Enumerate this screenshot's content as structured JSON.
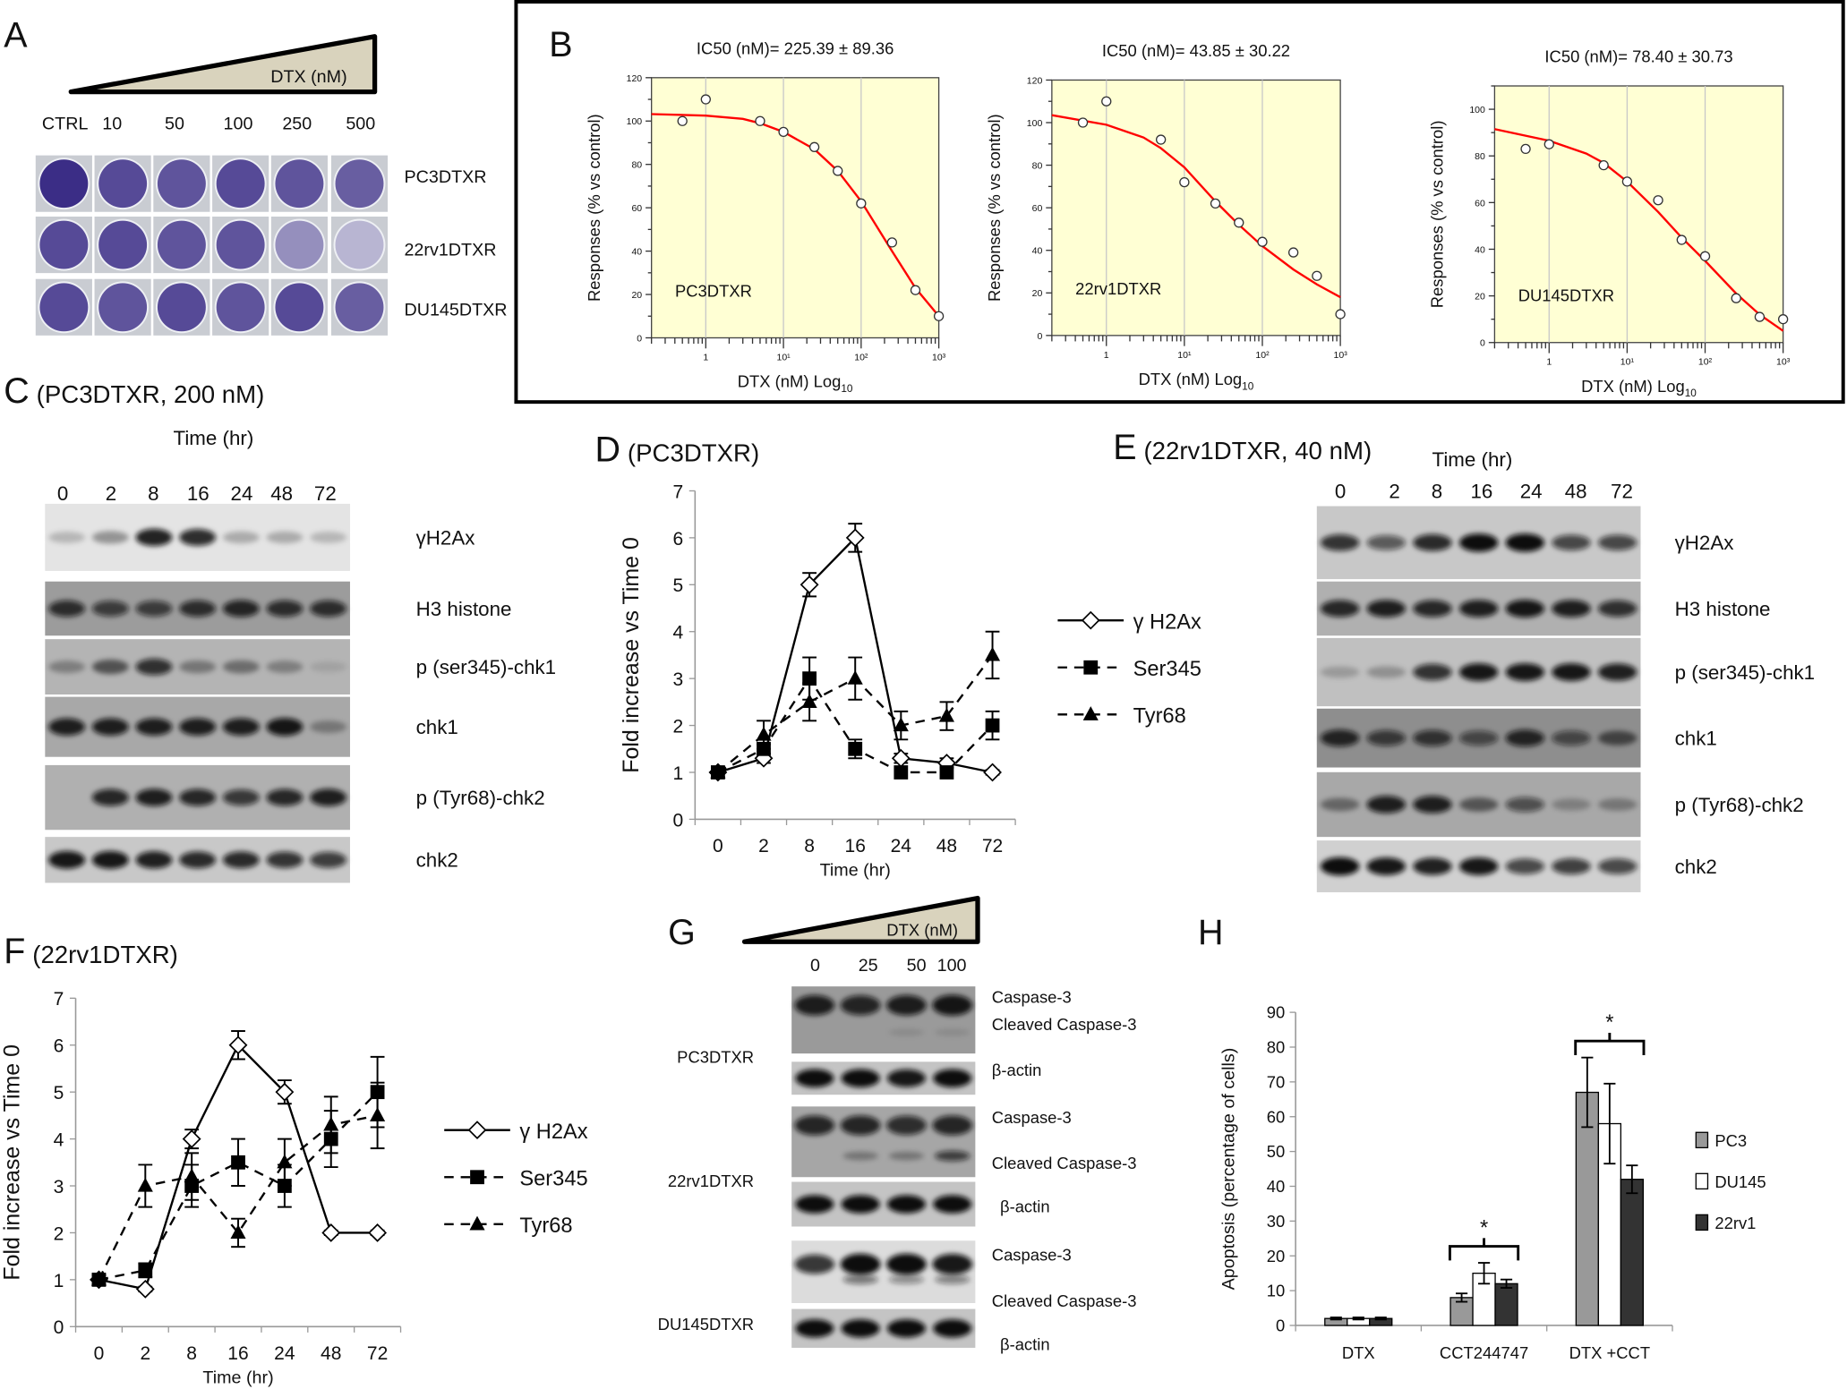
{
  "panel_A": {
    "letter": "A",
    "gradient_label": "DTX (nM)",
    "doses": [
      "CTRL",
      "10",
      "50",
      "100",
      "250",
      "500"
    ],
    "cell_lines": [
      "PC3DTXR",
      "22rv1DTXR",
      "DU145DTXR"
    ],
    "stain_intensity": [
      [
        1.0,
        0.85,
        0.8,
        0.85,
        0.8,
        0.75
      ],
      [
        0.85,
        0.85,
        0.8,
        0.8,
        0.5,
        0.3
      ],
      [
        0.85,
        0.8,
        0.85,
        0.8,
        0.85,
        0.75
      ]
    ],
    "stain_color": "#3b2d86"
  },
  "panel_B": {
    "letter": "B"
  },
  "panel_C": {
    "letter": "C",
    "title": "(PC3DTXR, 200 nM)",
    "time_label": "Time (hr)",
    "lanes": [
      "0",
      "2",
      "8",
      "16",
      "24",
      "48",
      "72"
    ],
    "rows": [
      {
        "label": "γH2Ax",
        "bands": [
          0.2,
          0.35,
          0.9,
          0.85,
          0.25,
          0.25,
          0.2
        ]
      },
      {
        "label": "H3 histone",
        "bands": [
          0.8,
          0.7,
          0.7,
          0.8,
          0.85,
          0.8,
          0.8
        ]
      },
      {
        "label": "p (ser345)-chk1",
        "bands": [
          0.3,
          0.55,
          0.8,
          0.35,
          0.4,
          0.3,
          0.1
        ]
      },
      {
        "label": "chk1",
        "bands": [
          0.9,
          0.9,
          0.9,
          0.9,
          0.9,
          0.95,
          0.3
        ]
      },
      {
        "label": "p (Tyr68)-chk2",
        "bands": [
          0.0,
          0.85,
          0.9,
          0.85,
          0.75,
          0.85,
          0.9
        ]
      },
      {
        "label": "chk2",
        "bands": [
          0.95,
          0.95,
          0.9,
          0.85,
          0.85,
          0.8,
          0.75
        ]
      }
    ]
  },
  "panel_D": {
    "letter": "D",
    "title": "(PC3DTXR)"
  },
  "panel_E": {
    "letter": "E",
    "title": "(22rv1DTXR, 40 nM)",
    "time_label": "Time (hr)",
    "lanes": [
      "0",
      "2",
      "8",
      "16",
      "24",
      "48",
      "72"
    ],
    "rows": [
      {
        "label": "γH2Ax",
        "bands": [
          0.8,
          0.6,
          0.85,
          1.0,
          1.0,
          0.7,
          0.7
        ]
      },
      {
        "label": "H3 histone",
        "bands": [
          0.85,
          0.9,
          0.85,
          0.9,
          0.95,
          0.9,
          0.8
        ]
      },
      {
        "label": "p (ser345)-chk1",
        "bands": [
          0.2,
          0.25,
          0.8,
          0.95,
          0.95,
          0.95,
          0.9
        ]
      },
      {
        "label": "chk1",
        "bands": [
          0.85,
          0.7,
          0.75,
          0.6,
          0.85,
          0.6,
          0.55
        ]
      },
      {
        "label": "p (Tyr68)-chk2",
        "bands": [
          0.4,
          0.9,
          0.9,
          0.5,
          0.6,
          0.25,
          0.3
        ]
      },
      {
        "label": "chk2",
        "bands": [
          1.0,
          0.95,
          0.9,
          0.95,
          0.7,
          0.75,
          0.7
        ]
      }
    ]
  },
  "panel_F": {
    "letter": "F",
    "title": "(22rv1DTXR)"
  },
  "panel_G": {
    "letter": "G",
    "gradient_label": "DTX (nM)",
    "lanes": [
      "0",
      "25",
      "50",
      "100"
    ],
    "groups": [
      {
        "cell_line": "PC3DTXR",
        "caspase": [
          0.9,
          0.85,
          0.9,
          0.95
        ],
        "cleaved": [
          0.0,
          0.0,
          0.1,
          0.1
        ],
        "actin": [
          1,
          1,
          0.95,
          1
        ]
      },
      {
        "cell_line": "22rv1DTXR",
        "caspase": [
          0.85,
          0.85,
          0.8,
          0.85
        ],
        "cleaved": [
          0.0,
          0.3,
          0.3,
          0.7
        ],
        "actin": [
          1,
          1,
          1,
          1
        ]
      },
      {
        "cell_line": "DU145DTXR",
        "caspase": [
          0.8,
          1.0,
          1.0,
          0.95
        ],
        "cleaved": [
          0.0,
          0.5,
          0.4,
          0.45
        ],
        "actin": [
          1,
          1,
          1,
          1
        ]
      }
    ],
    "labels": {
      "caspase": "Caspase-3",
      "cleaved": "Cleaved Caspase-3",
      "actin": "β-actin"
    }
  },
  "panel_H": {
    "letter": "H"
  },
  "chart_data": [
    {
      "id": "B1",
      "type": "scatter",
      "title": "IC50 (nM)= 225.39 ± 89.36",
      "xlabel": "DTX  (nM) Log",
      "xlabel_subscript": "10",
      "ylabel": "Responses (% vs control)",
      "annotation": "PC3DTXR",
      "xscale": "log",
      "xlim": [
        0.2,
        1000
      ],
      "ylim": [
        0,
        120
      ],
      "ytick_step": 20,
      "xticks": [
        "1",
        "10¹",
        "10²",
        "10³"
      ],
      "background": "#ffffd4",
      "fit_color": "#ff0000",
      "points": [
        [
          0.5,
          100
        ],
        [
          1,
          110
        ],
        [
          5,
          100
        ],
        [
          10,
          95
        ],
        [
          25,
          88
        ],
        [
          50,
          77
        ],
        [
          100,
          62
        ],
        [
          250,
          44
        ],
        [
          500,
          22
        ],
        [
          1000,
          10
        ]
      ],
      "fit": [
        [
          0.2,
          103.2
        ],
        [
          1,
          102.5
        ],
        [
          3,
          101
        ],
        [
          5,
          99
        ],
        [
          10,
          95
        ],
        [
          25,
          87
        ],
        [
          50,
          77
        ],
        [
          100,
          63
        ],
        [
          250,
          40
        ],
        [
          500,
          23
        ],
        [
          1000,
          10
        ]
      ]
    },
    {
      "id": "B2",
      "type": "scatter",
      "title": "IC50 (nM)= 43.85 ±  30.22",
      "xlabel": "DTX (nM) Log",
      "xlabel_subscript": "10",
      "ylabel": "Responses (% vs control)",
      "annotation": "22rv1DTXR",
      "xscale": "log",
      "xlim": [
        0.2,
        1000
      ],
      "ylim": [
        0,
        120
      ],
      "ytick_step": 20,
      "xticks": [
        "1",
        "10¹",
        "10²",
        "10³"
      ],
      "background": "#ffffd4",
      "fit_color": "#ff0000",
      "points": [
        [
          0.5,
          100
        ],
        [
          1,
          110
        ],
        [
          5,
          92
        ],
        [
          10,
          72
        ],
        [
          25,
          62
        ],
        [
          50,
          53
        ],
        [
          100,
          44
        ],
        [
          250,
          39
        ],
        [
          500,
          28
        ],
        [
          1000,
          10
        ]
      ],
      "fit": [
        [
          0.2,
          103.5
        ],
        [
          1,
          99
        ],
        [
          3,
          93
        ],
        [
          5,
          88
        ],
        [
          10,
          79
        ],
        [
          25,
          63
        ],
        [
          50,
          52
        ],
        [
          100,
          42
        ],
        [
          250,
          31
        ],
        [
          500,
          24
        ],
        [
          1000,
          18
        ]
      ]
    },
    {
      "id": "B3",
      "type": "scatter",
      "title": "IC50 (nM)= 78.40 ±  30.73",
      "xlabel": "DTX  (nM) Log",
      "xlabel_subscript": "10",
      "ylabel": "Responses (% vs control)",
      "annotation": "DU145DTXR",
      "xscale": "log",
      "xlim": [
        0.2,
        1000
      ],
      "ylim": [
        0,
        110
      ],
      "ytick_step": 20,
      "xticks": [
        "1",
        "10¹",
        "10²",
        "10³"
      ],
      "background": "#ffffd4",
      "fit_color": "#ff0000",
      "points": [
        [
          0.5,
          83
        ],
        [
          1,
          85
        ],
        [
          5,
          76
        ],
        [
          10,
          69
        ],
        [
          25,
          61
        ],
        [
          50,
          44
        ],
        [
          100,
          37
        ],
        [
          250,
          19
        ],
        [
          500,
          11
        ],
        [
          1000,
          10
        ]
      ],
      "fit": [
        [
          0.2,
          91.5
        ],
        [
          1,
          86.5
        ],
        [
          3,
          81
        ],
        [
          5,
          77
        ],
        [
          10,
          69
        ],
        [
          25,
          56
        ],
        [
          50,
          45
        ],
        [
          100,
          35
        ],
        [
          250,
          21
        ],
        [
          500,
          12
        ],
        [
          1000,
          5
        ]
      ]
    },
    {
      "id": "D",
      "type": "line",
      "xlabel": "Time (hr)",
      "ylabel": "Fold increase vs Time 0",
      "categories": [
        "0",
        "2",
        "8",
        "16",
        "24",
        "48",
        "72"
      ],
      "ylim": [
        0,
        7
      ],
      "legend": "right",
      "series": [
        {
          "name": "γ H2Ax",
          "marker": "open-diamond",
          "dash": false,
          "values": [
            1,
            1.3,
            5,
            6,
            1.3,
            1.2,
            1.0
          ],
          "errors": [
            0.1,
            0.1,
            0.25,
            0.3,
            0.1,
            0.1,
            0.05
          ]
        },
        {
          "name": "Ser345",
          "marker": "filled-square",
          "dash": true,
          "values": [
            1,
            1.5,
            3,
            1.5,
            1,
            1,
            2
          ],
          "errors": [
            0,
            0.1,
            0.45,
            0.2,
            0,
            0,
            0.3
          ]
        },
        {
          "name": "Tyr68",
          "marker": "filled-triangle",
          "dash": true,
          "values": [
            1,
            1.8,
            2.5,
            3,
            2,
            2.2,
            3.5
          ],
          "errors": [
            0,
            0.3,
            0.4,
            0.45,
            0.3,
            0.3,
            0.5
          ]
        }
      ]
    },
    {
      "id": "F",
      "type": "line",
      "xlabel": "Time (hr)",
      "ylabel": "Fold increase vs Time 0",
      "categories": [
        "0",
        "2",
        "8",
        "16",
        "24",
        "48",
        "72"
      ],
      "ylim": [
        0,
        7
      ],
      "legend": "right",
      "series": [
        {
          "name": "γ H2Ax",
          "marker": "open-diamond",
          "dash": false,
          "values": [
            1,
            0.8,
            4,
            6,
            5,
            2,
            2
          ],
          "errors": [
            0.1,
            0.05,
            0.2,
            0.3,
            0.25,
            0.05,
            0.05
          ]
        },
        {
          "name": "Ser345",
          "marker": "filled-square",
          "dash": true,
          "values": [
            1,
            1.2,
            3,
            3.5,
            3,
            4,
            5
          ],
          "errors": [
            0.1,
            0.15,
            0.45,
            0.5,
            0.45,
            0.6,
            0.75
          ]
        },
        {
          "name": "Tyr68",
          "marker": "filled-triangle",
          "dash": true,
          "values": [
            1,
            3,
            3.2,
            2,
            3.5,
            4.3,
            4.5
          ],
          "errors": [
            0.1,
            0.45,
            0.5,
            0.3,
            0.5,
            0.6,
            0.7
          ]
        }
      ]
    },
    {
      "id": "H",
      "type": "bar",
      "ylabel": "Apoptosis (percentage of cells)",
      "categories": [
        "DTX",
        "CCT244747",
        "DTX +CCT"
      ],
      "ylim": [
        0,
        90
      ],
      "ytick_step": 10,
      "legend": "right",
      "series": [
        {
          "name": "PC3",
          "color": "#999999",
          "values": [
            2,
            8,
            67
          ],
          "errors": [
            0.3,
            1.2,
            10
          ]
        },
        {
          "name": "DU145",
          "color": "#ffffff",
          "values": [
            2,
            15,
            58
          ],
          "errors": [
            0.3,
            3,
            11.5
          ]
        },
        {
          "name": "22rv1",
          "color": "#333333",
          "values": [
            2,
            12,
            42
          ],
          "errors": [
            0.3,
            1.2,
            4
          ]
        }
      ],
      "significance": [
        {
          "category": "CCT244747",
          "mark": "*"
        },
        {
          "category": "DTX +CCT",
          "mark": "*"
        }
      ]
    }
  ]
}
